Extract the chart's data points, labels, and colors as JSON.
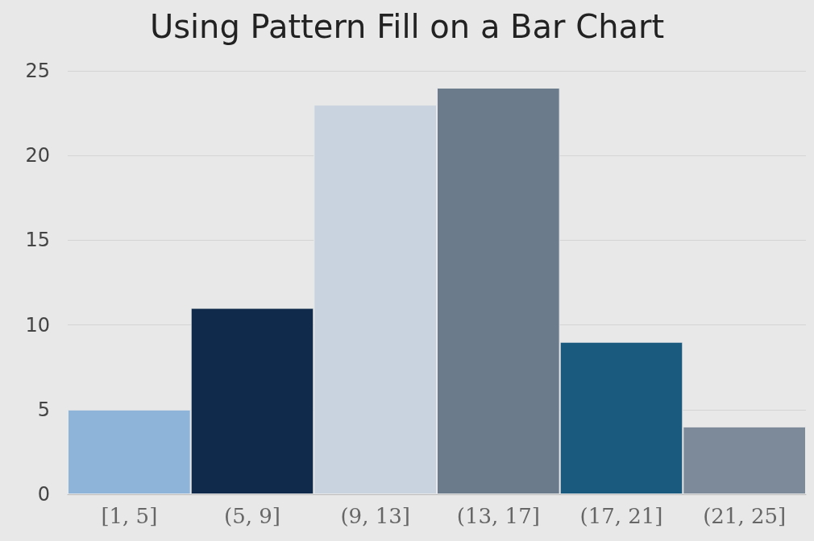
{
  "chart_data": {
    "type": "bar",
    "title": "Using Pattern Fill on a Bar Chart",
    "categories": [
      "[1, 5]",
      "(5, 9]",
      "(9, 13]",
      "(13, 17]",
      "(17, 21]",
      "(21, 25]"
    ],
    "values": [
      5,
      11,
      23,
      24,
      9,
      4
    ],
    "colors": [
      "#8fb4d9",
      "#0f2a4a",
      "#c9d3df",
      "#6b7b8c",
      "#1a5a7e",
      "#7d8a99"
    ],
    "ylim": [
      0,
      25
    ],
    "yticks": [
      0,
      5,
      10,
      15,
      20,
      25
    ],
    "grid": "y"
  }
}
